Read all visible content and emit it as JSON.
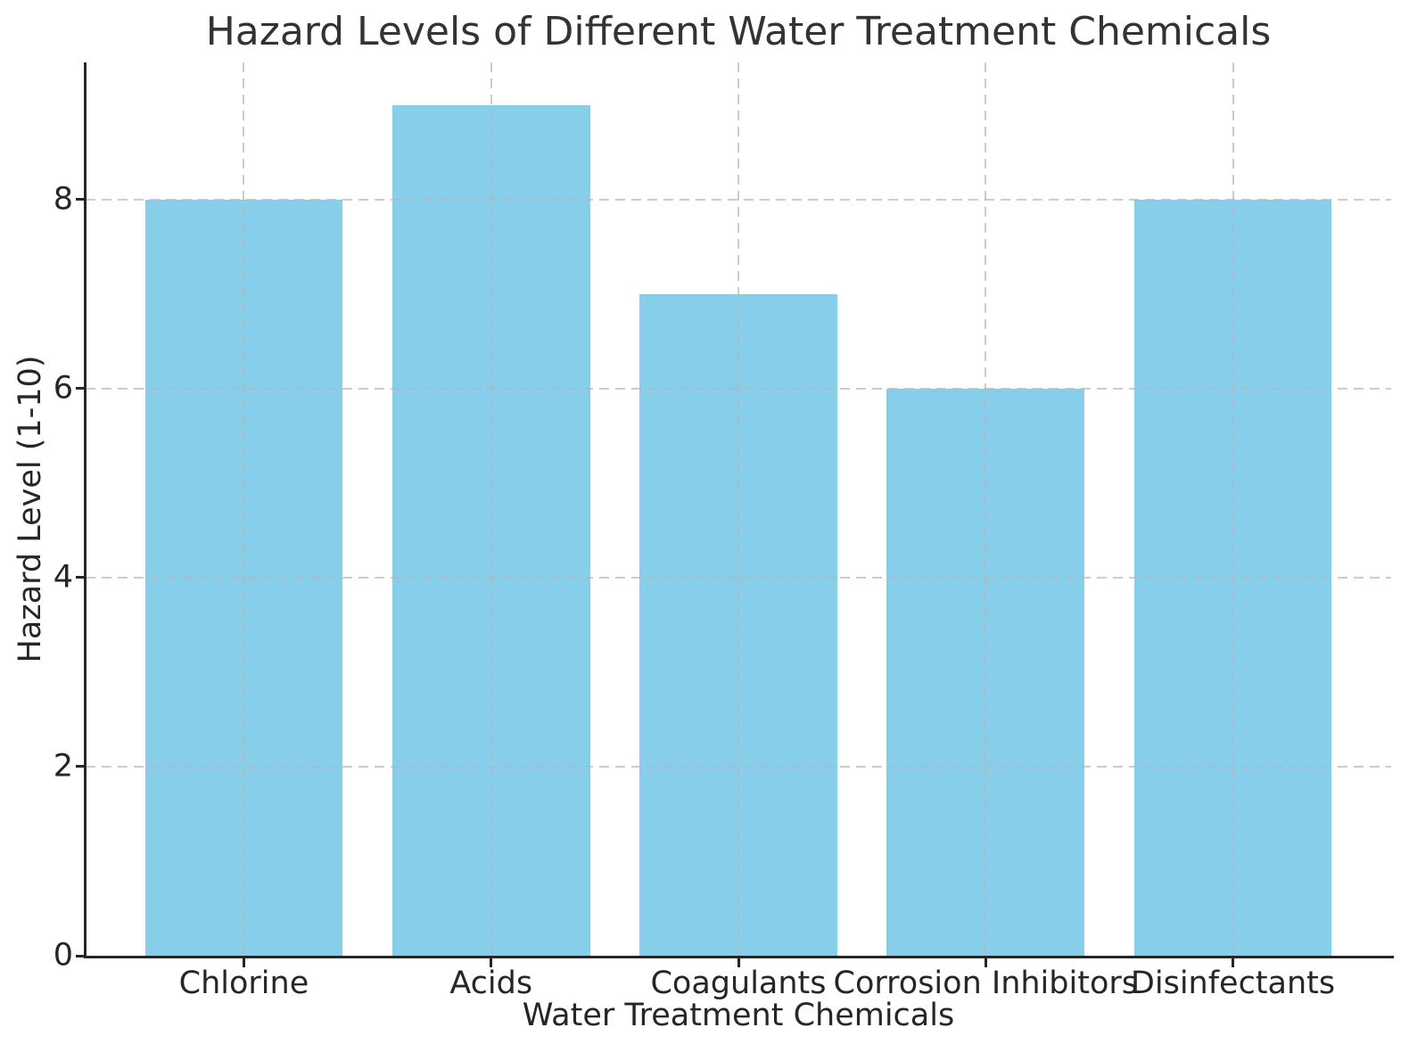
{
  "chart_data": {
    "type": "bar",
    "title": "Hazard Levels of Different Water Treatment Chemicals",
    "xlabel": "Water Treatment Chemicals",
    "ylabel": "Hazard Level (1-10)",
    "categories": [
      "Chlorine",
      "Acids",
      "Coagulants",
      "Corrosion Inhibitors",
      "Disinfectants"
    ],
    "values": [
      8,
      9,
      7,
      6,
      8
    ],
    "yticks": [
      0,
      2,
      4,
      6,
      8
    ],
    "ylim": [
      0,
      9.45
    ],
    "x_margin": 0.64,
    "bar_width_fraction": 0.8,
    "grid": true,
    "legend": "none",
    "bar_color": "#87CEEB",
    "grid_color": "rgba(182,182,182,0.7)",
    "spine_color": "#262626",
    "title_color": "#333333",
    "text_color": "#262626"
  }
}
